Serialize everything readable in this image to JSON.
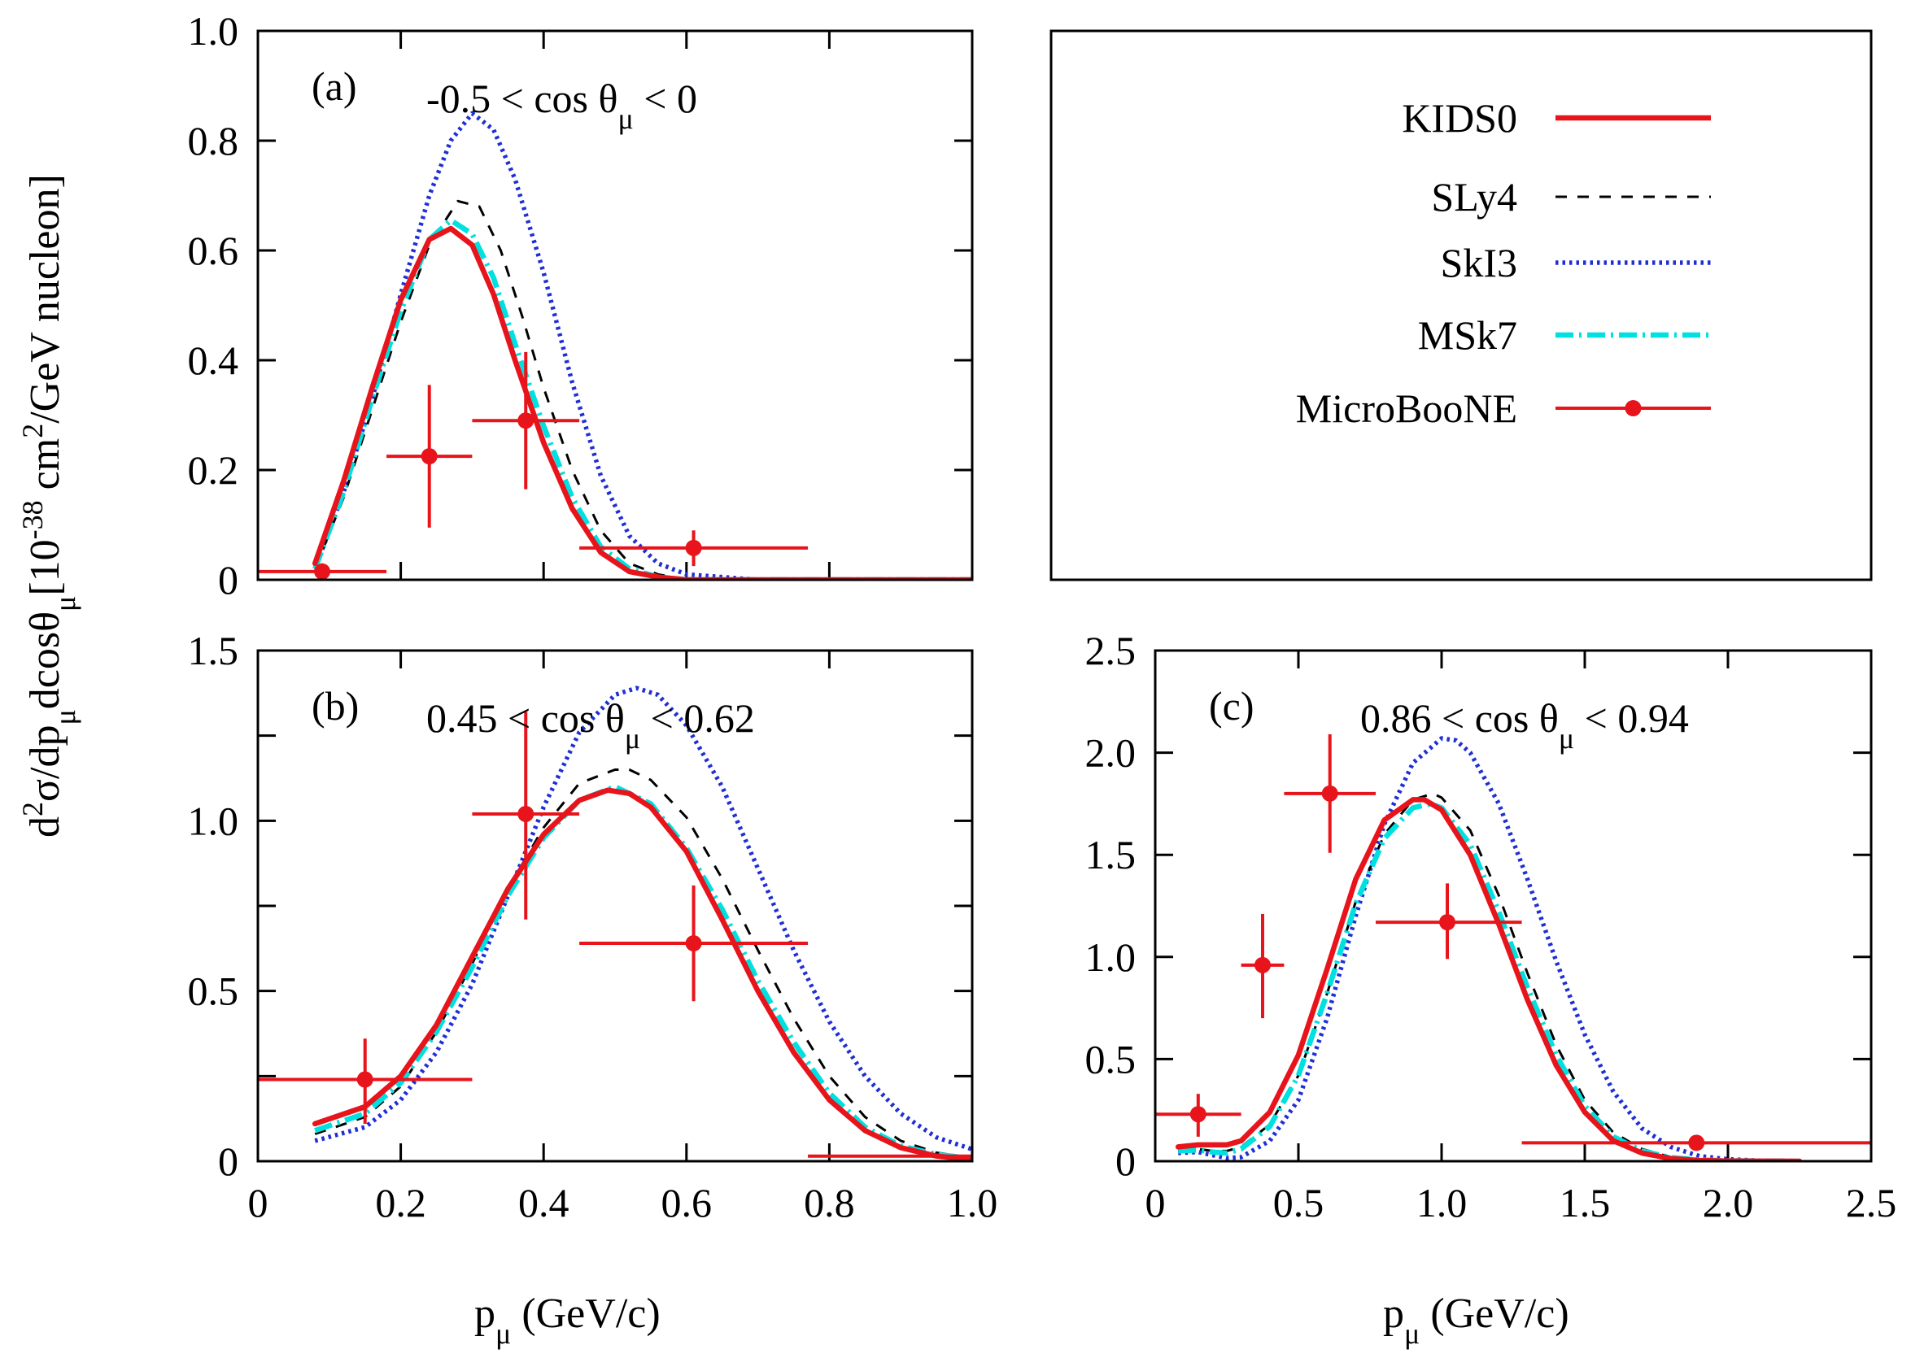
{
  "figure": {
    "ylabel_parts": [
      "d",
      "2",
      "σ/dp",
      "μ",
      "dcosθ",
      "μ",
      "[10",
      "-38",
      " cm",
      "2",
      "/GeV nucleon]"
    ],
    "xlabel_parts": [
      "p",
      "μ",
      " (GeV/c)"
    ]
  },
  "legend": {
    "entries": [
      {
        "label": "KIDS0",
        "style": "solid",
        "color": "#e8141b"
      },
      {
        "label": "SLy4",
        "style": "dashed",
        "color": "#000000"
      },
      {
        "label": "SkI3",
        "style": "dotted",
        "color": "#1f2fd6"
      },
      {
        "label": "MSk7",
        "style": "dashdot",
        "color": "#00e0e0"
      },
      {
        "label": "MicroBooNE",
        "style": "data",
        "color": "#e8141b"
      }
    ]
  },
  "colors": {
    "KIDS0": "#e8141b",
    "SLy4": "#000000",
    "SkI3": "#1f2fd6",
    "MSk7": "#00e0e0",
    "MicroBooNE": "#e8141b"
  },
  "chart_data": [
    {
      "id": "a",
      "type": "line",
      "panel_label": "(a)",
      "range_label": [
        "-0.5 < cos θ",
        "μ",
        " < 0"
      ],
      "xlim": [
        0,
        1.0
      ],
      "ylim": [
        0,
        1.0
      ],
      "xticks": [
        0,
        0.2,
        0.4,
        0.6,
        0.8,
        1.0
      ],
      "xticklabels": [],
      "yticks": [
        0,
        0.2,
        0.4,
        0.6,
        0.8,
        1.0
      ],
      "yticklabels": [
        "0",
        "0.2",
        "0.4",
        "0.6",
        "0.8",
        "1.0"
      ],
      "series": [
        {
          "name": "SkI3",
          "x": [
            0.08,
            0.12,
            0.16,
            0.2,
            0.24,
            0.27,
            0.3,
            0.33,
            0.36,
            0.4,
            0.44,
            0.48,
            0.52,
            0.56,
            0.6,
            0.7,
            0.8,
            1.0
          ],
          "y": [
            0.02,
            0.16,
            0.33,
            0.52,
            0.7,
            0.8,
            0.85,
            0.82,
            0.73,
            0.56,
            0.36,
            0.19,
            0.08,
            0.03,
            0.01,
            0.0,
            0.0,
            0.0
          ]
        },
        {
          "name": "SLy4",
          "x": [
            0.08,
            0.12,
            0.16,
            0.2,
            0.24,
            0.28,
            0.31,
            0.34,
            0.37,
            0.4,
            0.44,
            0.48,
            0.52,
            0.56,
            0.6,
            0.7,
            1.0
          ],
          "y": [
            0.02,
            0.15,
            0.31,
            0.47,
            0.61,
            0.69,
            0.68,
            0.6,
            0.48,
            0.35,
            0.2,
            0.09,
            0.03,
            0.01,
            0.0,
            0.0,
            0.0
          ]
        },
        {
          "name": "MSk7",
          "x": [
            0.08,
            0.12,
            0.16,
            0.2,
            0.24,
            0.27,
            0.3,
            0.33,
            0.36,
            0.4,
            0.44,
            0.48,
            0.52,
            0.56,
            0.6,
            0.7,
            1.0
          ],
          "y": [
            0.02,
            0.16,
            0.33,
            0.49,
            0.62,
            0.655,
            0.63,
            0.55,
            0.43,
            0.28,
            0.15,
            0.06,
            0.02,
            0.005,
            0.0,
            0.0,
            0.0
          ]
        },
        {
          "name": "KIDS0",
          "x": [
            0.08,
            0.12,
            0.16,
            0.2,
            0.24,
            0.27,
            0.3,
            0.33,
            0.36,
            0.4,
            0.44,
            0.48,
            0.52,
            0.56,
            0.6,
            0.7,
            1.0
          ],
          "y": [
            0.03,
            0.18,
            0.35,
            0.51,
            0.62,
            0.64,
            0.61,
            0.52,
            0.4,
            0.25,
            0.13,
            0.05,
            0.015,
            0.005,
            0.0,
            0.0,
            0.0
          ]
        }
      ],
      "data": {
        "name": "MicroBooNE",
        "points": [
          {
            "x": 0.09,
            "y": 0.015,
            "xlo": 0.0,
            "xhi": 0.18,
            "ylo": 0.0,
            "yhi": 0.03
          },
          {
            "x": 0.24,
            "y": 0.225,
            "xlo": 0.18,
            "xhi": 0.3,
            "ylo": 0.095,
            "yhi": 0.355
          },
          {
            "x": 0.375,
            "y": 0.29,
            "xlo": 0.3,
            "xhi": 0.45,
            "ylo": 0.165,
            "yhi": 0.415
          },
          {
            "x": 0.61,
            "y": 0.058,
            "xlo": 0.45,
            "xhi": 0.77,
            "ylo": 0.025,
            "yhi": 0.09
          }
        ]
      }
    },
    {
      "id": "b",
      "type": "line",
      "panel_label": "(b)",
      "range_label": [
        "0.45 < cos θ",
        "μ",
        " < 0.62"
      ],
      "xlim": [
        0,
        1.0
      ],
      "ylim": [
        0,
        1.5
      ],
      "xticks": [
        0,
        0.2,
        0.4,
        0.6,
        0.8,
        1.0
      ],
      "xticklabels": [
        "0",
        "0.2",
        "0.4",
        "0.6",
        "0.8",
        "1.0"
      ],
      "yticks": [
        0,
        0.5,
        1.0,
        1.5
      ],
      "yticklabels": [
        "0",
        "0.5",
        "1.0",
        "1.5"
      ],
      "yminor": [
        0.25,
        0.75,
        1.25
      ],
      "series": [
        {
          "name": "SkI3",
          "x": [
            0.08,
            0.15,
            0.2,
            0.25,
            0.3,
            0.35,
            0.4,
            0.45,
            0.5,
            0.53,
            0.56,
            0.6,
            0.65,
            0.7,
            0.75,
            0.8,
            0.85,
            0.9,
            0.95,
            1.0
          ],
          "y": [
            0.06,
            0.1,
            0.18,
            0.32,
            0.52,
            0.78,
            1.04,
            1.26,
            1.37,
            1.39,
            1.37,
            1.28,
            1.1,
            0.86,
            0.62,
            0.41,
            0.25,
            0.14,
            0.07,
            0.035
          ]
        },
        {
          "name": "SLy4",
          "x": [
            0.08,
            0.15,
            0.2,
            0.25,
            0.3,
            0.35,
            0.4,
            0.45,
            0.5,
            0.52,
            0.55,
            0.6,
            0.65,
            0.7,
            0.75,
            0.8,
            0.85,
            0.9,
            0.95,
            1.0
          ],
          "y": [
            0.08,
            0.13,
            0.22,
            0.38,
            0.58,
            0.8,
            0.98,
            1.11,
            1.15,
            1.15,
            1.12,
            1.01,
            0.83,
            0.62,
            0.42,
            0.25,
            0.13,
            0.06,
            0.025,
            0.01
          ]
        },
        {
          "name": "MSk7",
          "x": [
            0.08,
            0.15,
            0.2,
            0.25,
            0.3,
            0.35,
            0.4,
            0.45,
            0.5,
            0.55,
            0.6,
            0.65,
            0.7,
            0.75,
            0.8,
            0.85,
            0.9,
            0.95,
            1.0
          ],
          "y": [
            0.09,
            0.14,
            0.23,
            0.38,
            0.57,
            0.78,
            0.95,
            1.06,
            1.1,
            1.05,
            0.92,
            0.74,
            0.53,
            0.35,
            0.2,
            0.1,
            0.045,
            0.02,
            0.008
          ]
        },
        {
          "name": "KIDS0",
          "x": [
            0.08,
            0.15,
            0.2,
            0.25,
            0.3,
            0.35,
            0.4,
            0.45,
            0.49,
            0.52,
            0.55,
            0.6,
            0.65,
            0.7,
            0.75,
            0.8,
            0.85,
            0.9,
            0.95,
            1.0
          ],
          "y": [
            0.11,
            0.16,
            0.25,
            0.4,
            0.6,
            0.8,
            0.96,
            1.06,
            1.09,
            1.08,
            1.04,
            0.91,
            0.71,
            0.5,
            0.32,
            0.18,
            0.09,
            0.04,
            0.015,
            0.005
          ]
        }
      ],
      "data": {
        "name": "MicroBooNE",
        "points": [
          {
            "x": 0.15,
            "y": 0.24,
            "xlo": 0.0,
            "xhi": 0.3,
            "ylo": 0.11,
            "yhi": 0.36
          },
          {
            "x": 0.375,
            "y": 1.02,
            "xlo": 0.3,
            "xhi": 0.45,
            "ylo": 0.71,
            "yhi": 1.32
          },
          {
            "x": 0.61,
            "y": 0.64,
            "xlo": 0.45,
            "xhi": 0.77,
            "ylo": 0.47,
            "yhi": 0.81
          },
          {
            "x": 0.88,
            "y": 0.015,
            "xlo": 0.77,
            "xhi": 1.0,
            "ylo": 0.015,
            "yhi": 0.015
          }
        ]
      }
    },
    {
      "id": "c",
      "type": "line",
      "panel_label": "(c)",
      "range_label": [
        "0.86 < cos θ",
        "μ",
        " < 0.94"
      ],
      "xlim": [
        0,
        2.5
      ],
      "ylim": [
        0,
        2.5
      ],
      "xticks": [
        0,
        0.5,
        1.0,
        1.5,
        2.0,
        2.5
      ],
      "xticklabels": [
        "0",
        "0.5",
        "1.0",
        "1.5",
        "2.0",
        "2.5"
      ],
      "yticks": [
        0,
        0.5,
        1.0,
        1.5,
        2.0,
        2.5
      ],
      "yticklabels": [
        "0",
        "0.5",
        "1.0",
        "1.5",
        "2.0",
        "2.5"
      ],
      "series": [
        {
          "name": "SkI3",
          "x": [
            0.08,
            0.15,
            0.2,
            0.25,
            0.3,
            0.4,
            0.5,
            0.6,
            0.7,
            0.8,
            0.9,
            1.0,
            1.05,
            1.1,
            1.2,
            1.3,
            1.4,
            1.5,
            1.6,
            1.7,
            1.8,
            1.9,
            2.0,
            2.1,
            2.25
          ],
          "y": [
            0.04,
            0.045,
            0.03,
            0.015,
            0.02,
            0.1,
            0.3,
            0.7,
            1.2,
            1.65,
            1.95,
            2.07,
            2.06,
            2.0,
            1.75,
            1.38,
            0.98,
            0.62,
            0.34,
            0.16,
            0.07,
            0.025,
            0.01,
            0.003,
            0.0
          ]
        },
        {
          "name": "SLy4",
          "x": [
            0.08,
            0.15,
            0.2,
            0.25,
            0.3,
            0.4,
            0.5,
            0.6,
            0.7,
            0.8,
            0.9,
            0.97,
            1.0,
            1.1,
            1.2,
            1.3,
            1.4,
            1.5,
            1.6,
            1.7,
            1.8,
            1.9,
            2.0,
            2.25
          ],
          "y": [
            0.05,
            0.06,
            0.05,
            0.05,
            0.07,
            0.18,
            0.42,
            0.82,
            1.27,
            1.6,
            1.77,
            1.8,
            1.78,
            1.62,
            1.3,
            0.92,
            0.57,
            0.3,
            0.14,
            0.06,
            0.02,
            0.007,
            0.002,
            0.0
          ]
        },
        {
          "name": "MSk7",
          "x": [
            0.08,
            0.15,
            0.2,
            0.25,
            0.3,
            0.4,
            0.5,
            0.6,
            0.7,
            0.8,
            0.9,
            0.96,
            1.0,
            1.1,
            1.2,
            1.3,
            1.4,
            1.5,
            1.6,
            1.7,
            1.8,
            1.9,
            2.0,
            2.25
          ],
          "y": [
            0.05,
            0.055,
            0.045,
            0.04,
            0.06,
            0.17,
            0.42,
            0.82,
            1.26,
            1.58,
            1.73,
            1.75,
            1.73,
            1.55,
            1.22,
            0.85,
            0.52,
            0.27,
            0.12,
            0.05,
            0.018,
            0.006,
            0.002,
            0.0
          ]
        },
        {
          "name": "KIDS0",
          "x": [
            0.08,
            0.15,
            0.2,
            0.25,
            0.3,
            0.4,
            0.5,
            0.6,
            0.7,
            0.8,
            0.9,
            0.94,
            1.0,
            1.1,
            1.2,
            1.3,
            1.4,
            1.5,
            1.6,
            1.7,
            1.8,
            1.9,
            2.0,
            2.25
          ],
          "y": [
            0.07,
            0.08,
            0.08,
            0.08,
            0.1,
            0.24,
            0.52,
            0.94,
            1.38,
            1.67,
            1.77,
            1.77,
            1.72,
            1.5,
            1.16,
            0.79,
            0.47,
            0.24,
            0.1,
            0.04,
            0.013,
            0.004,
            0.001,
            0.0
          ]
        }
      ],
      "data": {
        "name": "MicroBooNE",
        "points": [
          {
            "x": 0.15,
            "y": 0.23,
            "xlo": 0.0,
            "xhi": 0.3,
            "ylo": 0.12,
            "yhi": 0.33
          },
          {
            "x": 0.375,
            "y": 0.96,
            "xlo": 0.3,
            "xhi": 0.45,
            "ylo": 0.7,
            "yhi": 1.21
          },
          {
            "x": 0.61,
            "y": 1.8,
            "xlo": 0.45,
            "xhi": 0.77,
            "ylo": 1.51,
            "yhi": 2.09
          },
          {
            "x": 1.02,
            "y": 1.17,
            "xlo": 0.77,
            "xhi": 1.28,
            "ylo": 0.99,
            "yhi": 1.36
          },
          {
            "x": 1.89,
            "y": 0.09,
            "xlo": 1.28,
            "xhi": 2.5,
            "ylo": 0.08,
            "yhi": 0.1
          }
        ]
      }
    }
  ]
}
